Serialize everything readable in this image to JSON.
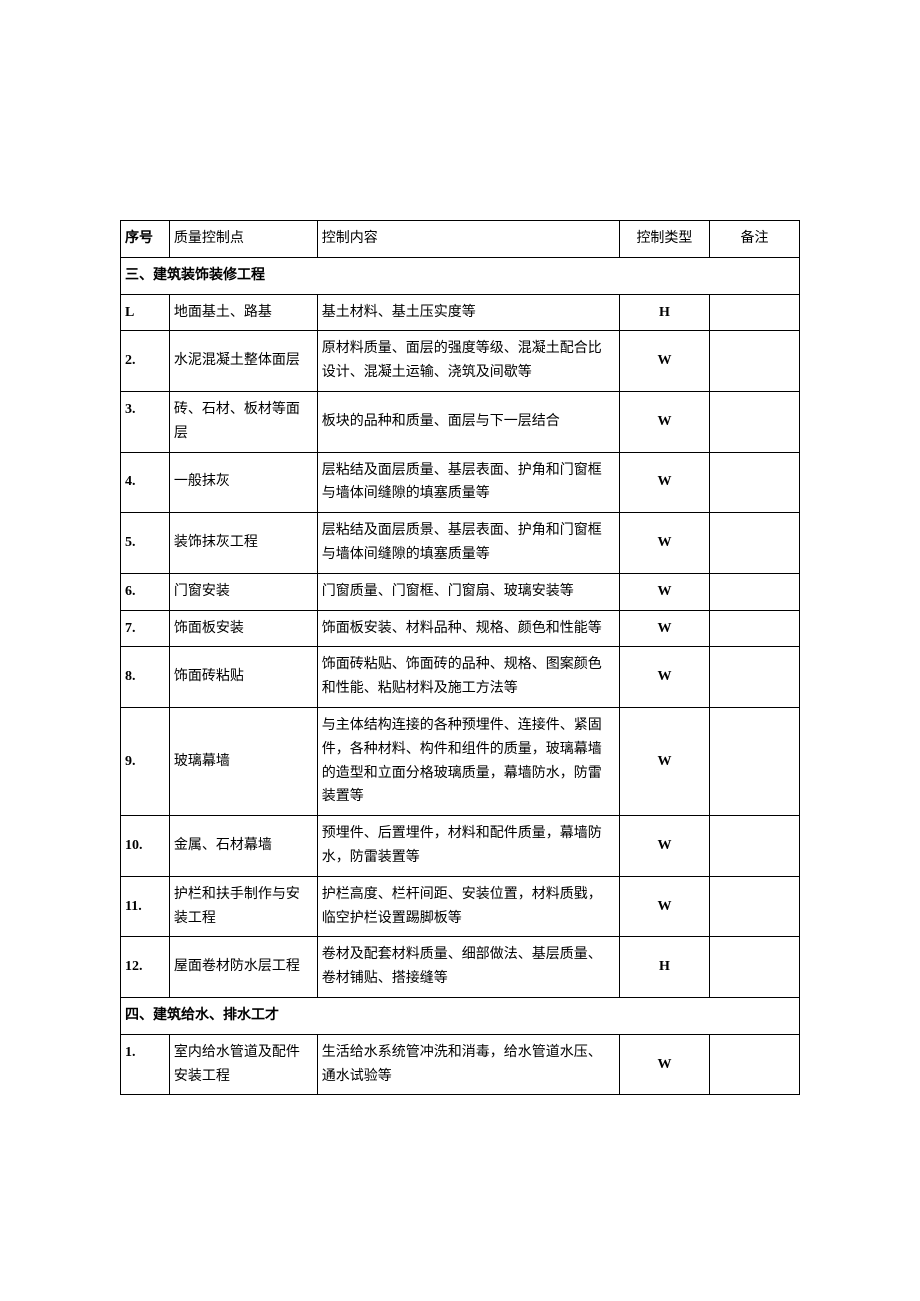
{
  "headers": {
    "seq": "序号",
    "point": "质量控制点",
    "content": "控制内容",
    "type": "控制类型",
    "note": "备注"
  },
  "sections": [
    {
      "title": "三、建筑装饰装修工程",
      "rows": [
        {
          "seq": "L",
          "point": "地面基土、路基",
          "content": "基土材料、基土压实度等",
          "type": "H",
          "note": ""
        },
        {
          "seq": "2.",
          "point": "水泥混凝土整体面层",
          "content": "原材料质量、面层的强度等级、混凝土配合比设计、混凝土运输、浇筑及间歇等",
          "type": "W",
          "note": ""
        },
        {
          "seq": "3.",
          "point": "砖、石材、板材等面层",
          "content": "板块的品种和质量、面层与下一层结合",
          "type": "W",
          "note": ""
        },
        {
          "seq": "4.",
          "point": "一般抹灰",
          "content": "层粘结及面层质量、基层表面、护角和门窗框与墙体间缝隙的填塞质量等",
          "type": "W",
          "note": ""
        },
        {
          "seq": "5.",
          "point": "装饰抹灰工程",
          "content": "层粘结及面层质景、基层表面、护角和门窗框与墙体间缝隙的填塞质量等",
          "type": "W",
          "note": ""
        },
        {
          "seq": "6.",
          "point": "门窗安装",
          "content": "门窗质量、门窗框、门窗扇、玻璃安装等",
          "type": "W",
          "note": ""
        },
        {
          "seq": "7.",
          "point": "饰面板安装",
          "content": "饰面板安装、材料品种、规格、颜色和性能等",
          "type": "W",
          "note": ""
        },
        {
          "seq": "8.",
          "point": "饰面砖粘贴",
          "content": "饰面砖粘贴、饰面砖的品种、规格、图案颜色和性能、粘贴材料及施工方法等",
          "type": "W",
          "note": ""
        },
        {
          "seq": "9.",
          "point": "玻璃幕墙",
          "content": "与主体结构连接的各种预埋件、连接件、紧固件，各种材料、构件和组件的质量，玻璃幕墙的造型和立面分格玻璃质量，幕墙防水，防雷装置等",
          "type": "W",
          "note": ""
        },
        {
          "seq": "10.",
          "point": "金属、石材幕墙",
          "content": "预埋件、后置埋件，材料和配件质量，幕墙防水，防雷装置等",
          "type": "W",
          "note": ""
        },
        {
          "seq": "11.",
          "point": "护栏和扶手制作与安装工程",
          "content": "护栏高度、栏杆间距、安装位置，材料质戥，临空护栏设置踢脚板等",
          "type": "W",
          "note": ""
        },
        {
          "seq": "12.",
          "point": "屋面卷材防水层工程",
          "content": "卷材及配套材料质量、细部做法、基层质量、卷材铺贴、搭接缝等",
          "type": "H",
          "note": ""
        }
      ]
    },
    {
      "title": "四、建筑给水、排水工才",
      "rows": [
        {
          "seq": "1.",
          "point": "室内给水管道及配件安装工程",
          "content": "生活给水系统管冲洗和消毒，给水管道水压、通水试验等",
          "type": "W",
          "note": ""
        }
      ]
    }
  ]
}
